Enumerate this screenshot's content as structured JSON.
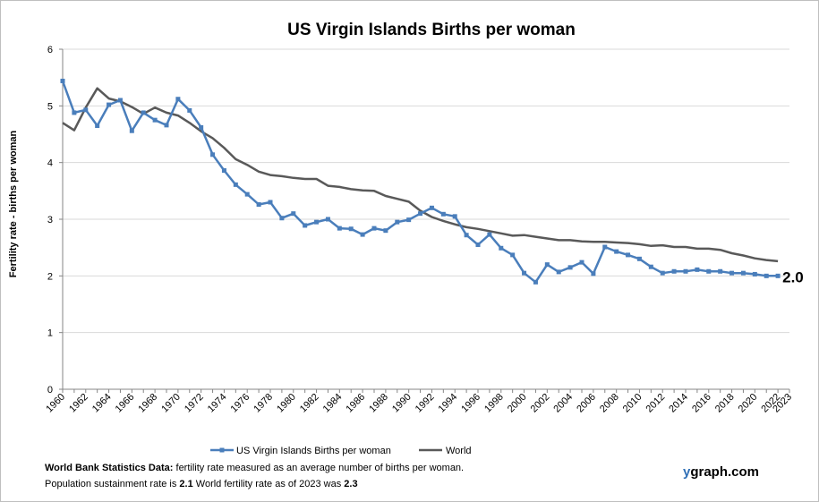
{
  "chart_data": {
    "type": "line",
    "title": "US Virgin Islands Births per woman",
    "ylabel": "Fertility rate  - births per woman",
    "xlabel": "",
    "ylim": [
      0,
      6
    ],
    "xlim": [
      1960,
      2023
    ],
    "yticks": [
      "0",
      "1",
      "2",
      "3",
      "4",
      "5",
      "6"
    ],
    "xticks": [
      "1960",
      "1962",
      "1964",
      "1966",
      "1968",
      "1970",
      "1972",
      "1974",
      "1976",
      "1978",
      "1980",
      "1982",
      "1984",
      "1986",
      "1988",
      "1990",
      "1992",
      "1994",
      "1996",
      "1998",
      "2000",
      "2002",
      "2004",
      "2006",
      "2008",
      "2010",
      "2012",
      "2014",
      "2016",
      "2018",
      "2020",
      "2022",
      "2023"
    ],
    "grid": "horizontal",
    "legend_position": "bottom",
    "end_label": "2.0",
    "series": [
      {
        "name": "US Virgin Islands Births per woman",
        "color": "#4a7ebb",
        "markers": true,
        "x": [
          1960,
          1961,
          1962,
          1963,
          1964,
          1965,
          1966,
          1967,
          1968,
          1969,
          1970,
          1971,
          1972,
          1973,
          1974,
          1975,
          1976,
          1977,
          1978,
          1979,
          1980,
          1981,
          1982,
          1983,
          1984,
          1985,
          1986,
          1987,
          1988,
          1989,
          1990,
          1991,
          1992,
          1993,
          1994,
          1995,
          1996,
          1997,
          1998,
          1999,
          2000,
          2001,
          2002,
          2003,
          2004,
          2005,
          2006,
          2007,
          2008,
          2009,
          2010,
          2011,
          2012,
          2013,
          2014,
          2015,
          2016,
          2017,
          2018,
          2019,
          2020,
          2021,
          2022
        ],
        "values": [
          5.44,
          4.88,
          4.93,
          4.65,
          5.02,
          5.1,
          4.56,
          4.88,
          4.75,
          4.66,
          5.12,
          4.92,
          4.62,
          4.14,
          3.86,
          3.61,
          3.44,
          3.26,
          3.3,
          3.02,
          3.1,
          2.89,
          2.95,
          3.0,
          2.84,
          2.83,
          2.73,
          2.84,
          2.8,
          2.95,
          2.99,
          3.1,
          3.2,
          3.09,
          3.05,
          2.72,
          2.55,
          2.73,
          2.49,
          2.37,
          2.05,
          1.89,
          2.2,
          2.07,
          2.15,
          2.24,
          2.04,
          2.51,
          2.43,
          2.37,
          2.3,
          2.16,
          2.05,
          2.08,
          2.08,
          2.11,
          2.08,
          2.08,
          2.05,
          2.05,
          2.03,
          2.0,
          2.0
        ]
      },
      {
        "name": "World",
        "color": "#595959",
        "markers": false,
        "x": [
          1960,
          1961,
          1962,
          1963,
          1964,
          1965,
          1966,
          1967,
          1968,
          1969,
          1970,
          1971,
          1972,
          1973,
          1974,
          1975,
          1976,
          1977,
          1978,
          1979,
          1980,
          1981,
          1982,
          1983,
          1984,
          1985,
          1986,
          1987,
          1988,
          1989,
          1990,
          1991,
          1992,
          1993,
          1994,
          1995,
          1996,
          1997,
          1998,
          1999,
          2000,
          2001,
          2002,
          2003,
          2004,
          2005,
          2006,
          2007,
          2008,
          2009,
          2010,
          2011,
          2012,
          2013,
          2014,
          2015,
          2016,
          2017,
          2018,
          2019,
          2020,
          2021,
          2022
        ],
        "values": [
          4.7,
          4.57,
          4.97,
          5.31,
          5.13,
          5.08,
          4.98,
          4.86,
          4.97,
          4.88,
          4.83,
          4.7,
          4.55,
          4.43,
          4.26,
          4.06,
          3.96,
          3.84,
          3.78,
          3.76,
          3.73,
          3.71,
          3.71,
          3.59,
          3.57,
          3.53,
          3.51,
          3.5,
          3.41,
          3.36,
          3.31,
          3.15,
          3.04,
          2.97,
          2.91,
          2.86,
          2.83,
          2.79,
          2.75,
          2.71,
          2.72,
          2.69,
          2.66,
          2.63,
          2.63,
          2.61,
          2.6,
          2.6,
          2.59,
          2.58,
          2.56,
          2.53,
          2.54,
          2.51,
          2.51,
          2.48,
          2.48,
          2.46,
          2.4,
          2.36,
          2.31,
          2.28,
          2.26
        ]
      }
    ]
  },
  "footnote": {
    "line1_bold": "World Bank Statistics Data:",
    "line1_text": " fertility rate measured as an average number  of births per woman.",
    "line2_text_a": "Population sustainment rate is ",
    "line2_bold_a": "2.1",
    "line2_text_b": "    World fertility rate as of 2023 was ",
    "line2_bold_b": "2.3"
  },
  "brand": {
    "first": "y",
    "rest": "graph.com"
  }
}
